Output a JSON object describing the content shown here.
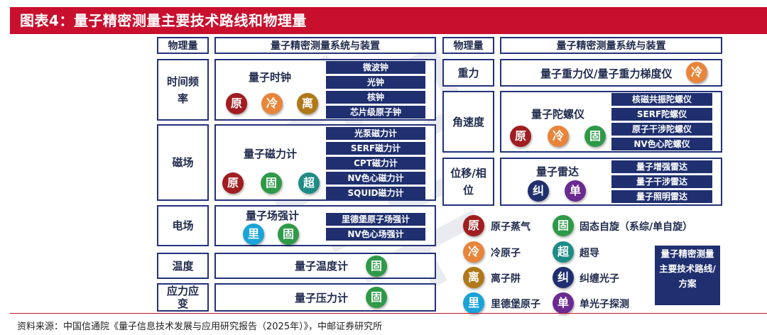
{
  "title": "图表4：量子精密测量主要技术路线和物理量",
  "headers": {
    "physical": "物理量",
    "system": "量子精密测量系统与装置"
  },
  "left": {
    "time": {
      "label": "时间频\n率",
      "system": "量子时钟",
      "items": [
        "微波钟",
        "光钟",
        "核钟",
        "芯片级原子钟"
      ],
      "tags": [
        "原",
        "冷",
        "离"
      ]
    },
    "magnetic": {
      "label": "磁场",
      "system": "量子磁力计",
      "items": [
        "光泵磁力计",
        "SERF磁力计",
        "CPT磁力计",
        "NV色心磁力计",
        "SQUID磁力计"
      ],
      "tags": [
        "原",
        "固",
        "超"
      ]
    },
    "electric": {
      "label": "电场",
      "system": "量子场强计",
      "items": [
        "里德堡原子场强计",
        "NV色心场强计"
      ],
      "tags": [
        "里",
        "固"
      ]
    },
    "temperature": {
      "label": "温度",
      "system": "量子温度计",
      "tags": [
        "固"
      ]
    },
    "stress": {
      "label": "应力应\n变",
      "system": "量子压力计",
      "tags": [
        "固"
      ]
    }
  },
  "right": {
    "gravity": {
      "label": "重力",
      "system": "量子重力仪/量子重力梯度仪",
      "tags": [
        "冷"
      ]
    },
    "angular": {
      "label": "角速度",
      "system": "量子陀螺仪",
      "items": [
        "核磁共振陀螺仪",
        "SERF陀螺仪",
        "原子干涉陀螺仪",
        "NV色心陀螺仪"
      ],
      "tags": [
        "原",
        "冷",
        "固"
      ]
    },
    "displacement": {
      "label": "位移/相\n位",
      "system": "量子雷达",
      "items": [
        "量子增强雷达",
        "量子干涉雷达",
        "量子照明雷达"
      ],
      "tags": [
        "纠",
        "单"
      ]
    }
  },
  "legend": [
    {
      "icon": "原",
      "text": "原子蒸气"
    },
    {
      "icon": "冷",
      "text": "冷原子"
    },
    {
      "icon": "离",
      "text": "离子阱"
    },
    {
      "icon": "里",
      "text": "里德堡原子"
    },
    {
      "icon": "固",
      "text": "固态自旋（系综/单自旋）"
    },
    {
      "icon": "超",
      "text": "超导"
    },
    {
      "icon": "纠",
      "text": "纠缠光子"
    },
    {
      "icon": "单",
      "text": "单光子探测"
    }
  ],
  "note": "量子精密测量主要技术路线/方案",
  "source": "资料来源：中国信通院《量子信息技术发展与应用研究报告（2025年）》，中邮证券研究所",
  "colors": {
    "title_bg": "#c8102e",
    "navy": "#1f2f6f",
    "yuan": "#a01d20",
    "leng": "#e8853a",
    "li": "#b07818",
    "gu": "#2e9a48",
    "chao": "#1e8c86",
    "jiu": "#1f2f6f",
    "dan": "#6a2a90",
    "lide": "#1aa3d8"
  }
}
